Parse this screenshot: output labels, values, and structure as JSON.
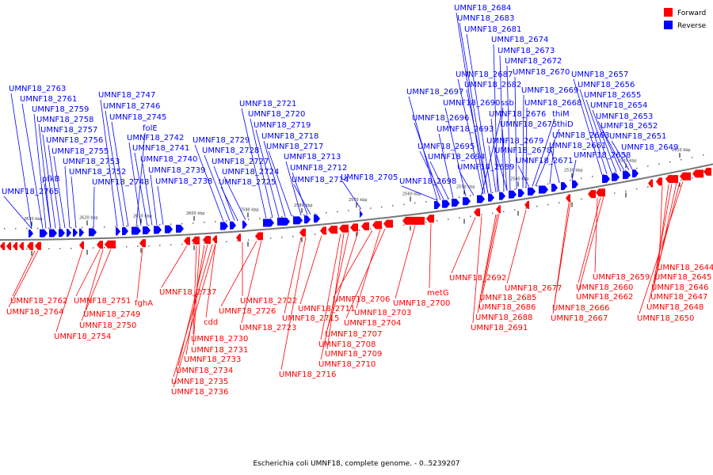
{
  "caption": "Escherichia coli UMNF18, complete genome. - 0..5239207",
  "legend": [
    {
      "label": "Forward",
      "color": "#ff0000"
    },
    {
      "label": "Reverse",
      "color": "#0000ff"
    }
  ],
  "colors": {
    "forward": "#ff0000",
    "reverse": "#0000ff",
    "backbone": "#777777"
  },
  "ticks": [
    "2630 kbp",
    "2620 kbp",
    "2610 kbp",
    "2600 kbp",
    "2590 kbp",
    "2580 kbp",
    "2570 kbp",
    "2560 kbp",
    "2550 kbp",
    "2540 kbp",
    "2530 kbp",
    "2520 kbp",
    "2510 kbp"
  ],
  "reverse_labels": [
    "UMNF18_2763",
    "UMNF18_2761",
    "UMNF18_2759",
    "UMNF18_2758",
    "UMNF18_2757",
    "UMNF18_2756",
    "UMNF18_2755",
    "UMNF18_2753",
    "UMNF18_2752",
    "pfkB",
    "UMNF18_2765",
    "UMNF18_2748",
    "UMNF18_2747",
    "UMNF18_2746",
    "UMNF18_2745",
    "folE",
    "UMNF18_2742",
    "UMNF18_2741",
    "UMNF18_2740",
    "UMNF18_2739",
    "UMNF18_2738",
    "UMNF18_2729",
    "UMNF18_2728",
    "UMNF18_2727",
    "UMNF18_2724",
    "UMNF18_2725",
    "UMNF18_2721",
    "UMNF18_2720",
    "UMNF18_2719",
    "UMNF18_2718",
    "UMNF18_2717",
    "UMNF18_2713",
    "UMNF18_2712",
    "UMNF18_2714",
    "UMNF18_2705",
    "UMNF18_2697",
    "UMNF18_2696",
    "UMNF18_2695",
    "UMNF18_2694",
    "UMNF18_2698",
    "UMNF18_2693",
    "UMNF18_2690",
    "ssb",
    "UMNF18_2689",
    "UMNF18_2687",
    "UMNF18_2682",
    "UMNF18_2684",
    "UMNF18_2683",
    "UMNF18_2681",
    "UMNF18_2674",
    "UMNF18_2673",
    "UMNF18_2672",
    "UMNF18_2670",
    "UMNF18_2669",
    "UMNF18_2668",
    "UMNF18_2676",
    "UMNF18_2675",
    "thiM",
    "thiD",
    "UMNF18_2679",
    "UMNF18_2678",
    "UMNF18_2671",
    "UMNF18_2663",
    "UMNF18_2661",
    "UMNF18_2658",
    "UMNF18_2657",
    "UMNF18_2656",
    "UMNF18_2655",
    "UMNF18_2654",
    "UMNF18_2653",
    "UMNF18_2652",
    "UMNF18_2651",
    "UMNF18_2649"
  ],
  "forward_labels": [
    "UMNF18_2762",
    "UMNF18_2764",
    "UMNF18_2751",
    "UMNF18_2749",
    "UMNF18_2750",
    "UMNF18_2754",
    "fghA",
    "UMNF18_2737",
    "cdd",
    "UMNF18_2730",
    "UMNF18_2731",
    "UMNF18_2733",
    "UMNF18_2734",
    "UMNF18_2735",
    "UMNF18_2736",
    "UMNF18_2722",
    "UMNF18_2726",
    "UMNF18_2723",
    "UMNF18_2711",
    "UMNF18_2715",
    "UMNF18_2716",
    "UMNF18_2706",
    "UMNF18_2703",
    "UMNF18_2704",
    "UMNF18_2707",
    "UMNF18_2708",
    "UMNF18_2709",
    "UMNF18_2710",
    "metG",
    "UMNF18_2700",
    "UMNF18_2692",
    "UMNF18_2685",
    "UMNF18_2686",
    "UMNF18_2688",
    "UMNF18_2691",
    "UMNF18_2677",
    "UMNF18_2659",
    "UMNF18_2660",
    "UMNF18_2662",
    "UMNF18_2666",
    "UMNF18_2667",
    "UMNF18_2644",
    "UMNF18_2645",
    "UMNF18_2646",
    "UMNF18_2647",
    "UMNF18_2648",
    "UMNF18_2650"
  ]
}
